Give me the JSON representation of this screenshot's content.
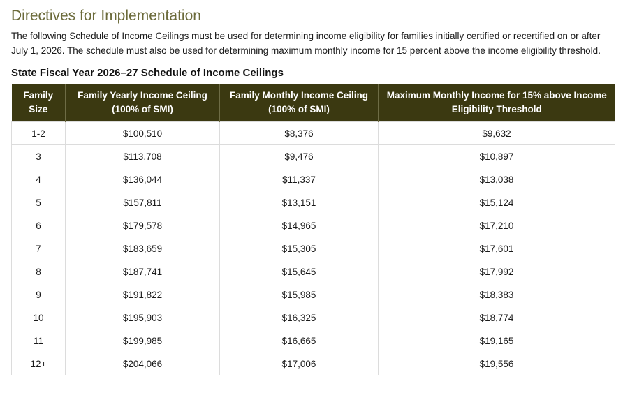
{
  "heading": "Directives for Implementation",
  "intro": "The following Schedule of Income Ceilings must be used for determining income eligibility for families initially certified or recertified on or after July 1, 2026. The schedule must also be used for determining maximum monthly income for 15 percent above the income eligibility threshold.",
  "table_title": "State Fiscal Year 2026–27 Schedule of Income Ceilings",
  "columns": [
    {
      "line1": "Family",
      "line2": "Size"
    },
    {
      "line1": "Family Yearly Income Ceiling",
      "line2": "(100% of SMI)"
    },
    {
      "line1": "Family Monthly Income Ceiling",
      "line2": "(100% of SMI)"
    },
    {
      "line1": "Maximum Monthly Income for 15% above Income",
      "line2": "Eligibility Threshold"
    }
  ],
  "rows": [
    [
      "1-2",
      "$100,510",
      "$8,376",
      "$9,632"
    ],
    [
      "3",
      "$113,708",
      "$9,476",
      "$10,897"
    ],
    [
      "4",
      "$136,044",
      "$11,337",
      "$13,038"
    ],
    [
      "5",
      "$157,811",
      "$13,151",
      "$15,124"
    ],
    [
      "6",
      "$179,578",
      "$14,965",
      "$17,210"
    ],
    [
      "7",
      "$183,659",
      "$15,305",
      "$17,601"
    ],
    [
      "8",
      "$187,741",
      "$15,645",
      "$17,992"
    ],
    [
      "9",
      "$191,822",
      "$15,985",
      "$18,383"
    ],
    [
      "10",
      "$195,903",
      "$16,325",
      "$18,774"
    ],
    [
      "11",
      "$199,985",
      "$16,665",
      "$19,165"
    ],
    [
      "12+",
      "$204,066",
      "$17,006",
      "$19,556"
    ]
  ],
  "colors": {
    "heading": "#6b6a3a",
    "header_bg": "#3b3911",
    "header_text": "#ffffff",
    "border": "#dcdcdc"
  }
}
